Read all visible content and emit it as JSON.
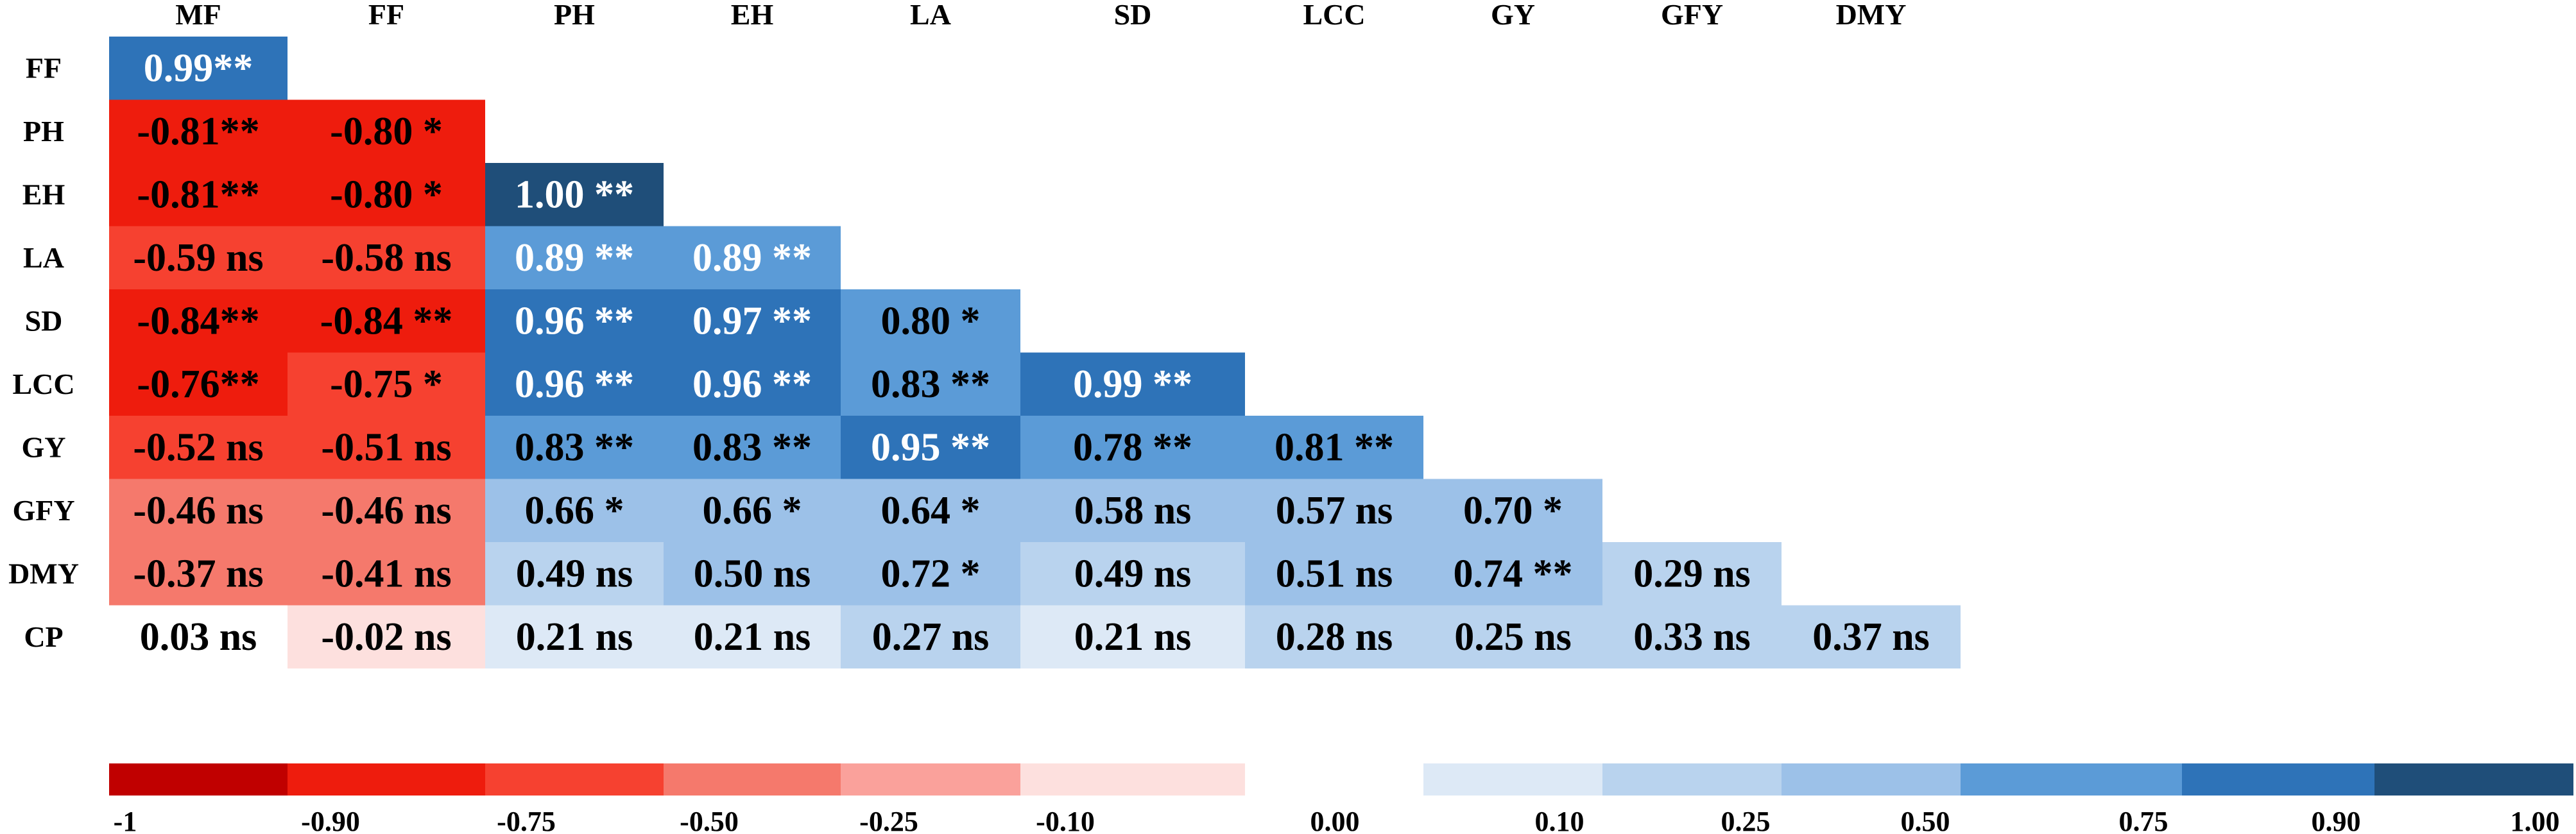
{
  "chart_data": {
    "type": "heatmap",
    "title": "",
    "subtitle": "",
    "column_labels": [
      "MF",
      "FF",
      "PH",
      "EH",
      "LA",
      "SD",
      "LCC",
      "GY",
      "GFY",
      "DMY"
    ],
    "row_labels": [
      "FF",
      "PH",
      "EH",
      "LA",
      "SD",
      "LCC",
      "GY",
      "GFY",
      "DMY",
      "CP"
    ],
    "matrix": "lower-triangular correlation matrix",
    "rows": [
      {
        "label": "FF",
        "cells": [
          {
            "value": 0.99,
            "text": "0.99**"
          }
        ]
      },
      {
        "label": "PH",
        "cells": [
          {
            "value": -0.81,
            "text": "-0.81**"
          },
          {
            "value": -0.8,
            "text": "-0.80 *"
          }
        ]
      },
      {
        "label": "EH",
        "cells": [
          {
            "value": -0.81,
            "text": "-0.81**"
          },
          {
            "value": -0.8,
            "text": "-0.80 *"
          },
          {
            "value": 1.0,
            "text": "1.00 **"
          }
        ]
      },
      {
        "label": "LA",
        "cells": [
          {
            "value": -0.59,
            "text": "-0.59 ns"
          },
          {
            "value": -0.58,
            "text": "-0.58 ns"
          },
          {
            "value": 0.89,
            "text": "0.89 **"
          },
          {
            "value": 0.89,
            "text": "0.89 **"
          }
        ]
      },
      {
        "label": "SD",
        "cells": [
          {
            "value": -0.84,
            "text": "-0.84**"
          },
          {
            "value": -0.84,
            "text": "-0.84 **"
          },
          {
            "value": 0.96,
            "text": "0.96 **"
          },
          {
            "value": 0.97,
            "text": "0.97 **"
          },
          {
            "value": 0.8,
            "text": "0.80 *"
          }
        ]
      },
      {
        "label": "LCC",
        "cells": [
          {
            "value": -0.76,
            "text": "-0.76**"
          },
          {
            "value": -0.75,
            "text": "-0.75 *"
          },
          {
            "value": 0.96,
            "text": "0.96 **"
          },
          {
            "value": 0.96,
            "text": "0.96 **"
          },
          {
            "value": 0.83,
            "text": "0.83 **"
          },
          {
            "value": 0.99,
            "text": "0.99 **"
          }
        ]
      },
      {
        "label": "GY",
        "cells": [
          {
            "value": -0.52,
            "text": "-0.52 ns"
          },
          {
            "value": -0.51,
            "text": "-0.51 ns"
          },
          {
            "value": 0.83,
            "text": "0.83 **"
          },
          {
            "value": 0.83,
            "text": "0.83 **"
          },
          {
            "value": 0.95,
            "text": "0.95 **"
          },
          {
            "value": 0.78,
            "text": "0.78 **"
          },
          {
            "value": 0.81,
            "text": "0.81 **"
          }
        ]
      },
      {
        "label": "GFY",
        "cells": [
          {
            "value": -0.46,
            "text": "-0.46 ns"
          },
          {
            "value": -0.46,
            "text": "-0.46 ns"
          },
          {
            "value": 0.66,
            "text": "0.66 *"
          },
          {
            "value": 0.66,
            "text": "0.66 *"
          },
          {
            "value": 0.64,
            "text": "0.64 *"
          },
          {
            "value": 0.58,
            "text": "0.58 ns"
          },
          {
            "value": 0.57,
            "text": "0.57 ns"
          },
          {
            "value": 0.7,
            "text": "0.70 *"
          }
        ]
      },
      {
        "label": "DMY",
        "cells": [
          {
            "value": -0.37,
            "text": "-0.37 ns"
          },
          {
            "value": -0.41,
            "text": "-0.41 ns"
          },
          {
            "value": 0.49,
            "text": "0.49 ns"
          },
          {
            "value": 0.5,
            "text": "0.50 ns"
          },
          {
            "value": 0.72,
            "text": "0.72 *"
          },
          {
            "value": 0.49,
            "text": "0.49 ns"
          },
          {
            "value": 0.51,
            "text": "0.51 ns"
          },
          {
            "value": 0.74,
            "text": "0.74 **"
          },
          {
            "value": 0.29,
            "text": "0.29 ns"
          }
        ]
      },
      {
        "label": "CP",
        "cells": [
          {
            "value": 0.03,
            "text": "0.03 ns"
          },
          {
            "value": -0.02,
            "text": "-0.02 ns"
          },
          {
            "value": 0.21,
            "text": "0.21 ns"
          },
          {
            "value": 0.21,
            "text": "0.21 ns"
          },
          {
            "value": 0.27,
            "text": "0.27 ns"
          },
          {
            "value": 0.21,
            "text": "0.21 ns"
          },
          {
            "value": 0.28,
            "text": "0.28 ns"
          },
          {
            "value": 0.25,
            "text": "0.25 ns"
          },
          {
            "value": 0.33,
            "text": "0.33 ns"
          },
          {
            "value": 0.37,
            "text": "0.37 ns"
          }
        ]
      }
    ],
    "color_scale": {
      "range": [
        -1,
        1
      ],
      "legend_position": "bottom",
      "bins": [
        {
          "from": -1.0,
          "to": -0.9,
          "color": "#c00000"
        },
        {
          "from": -0.9,
          "to": -0.75,
          "color": "#ee1c0d"
        },
        {
          "from": -0.75,
          "to": -0.5,
          "color": "#f64130"
        },
        {
          "from": -0.5,
          "to": -0.25,
          "color": "#f5796c"
        },
        {
          "from": -0.25,
          "to": -0.1,
          "color": "#faa19b"
        },
        {
          "from": -0.1,
          "to": 0.0,
          "color": "#fde0de"
        },
        {
          "from": 0.0,
          "to": 0.1,
          "color": "#ffffff"
        },
        {
          "from": 0.1,
          "to": 0.25,
          "color": "#dde9f6"
        },
        {
          "from": 0.25,
          "to": 0.5,
          "color": "#b9d3ee"
        },
        {
          "from": 0.5,
          "to": 0.75,
          "color": "#9cc1e8"
        },
        {
          "from": 0.75,
          "to": 0.9,
          "color": "#5b9bd7"
        },
        {
          "from": 0.9,
          "to": 1.0,
          "color": "#2e73b8"
        },
        {
          "from": 1.0,
          "to": 1.0,
          "color": "#1f4e79"
        }
      ],
      "tick_labels": [
        "-1",
        "-0.90",
        "-0.75",
        "-0.50",
        "-0.25",
        "-0.10",
        "0.00",
        "0.10",
        "0.25",
        "0.50",
        "0.75",
        "0.90",
        "1.00"
      ]
    },
    "colors": {
      "negative_strong": "#ee1c0d",
      "negative_mid": "#f64130",
      "negative_weak": "#f5796c",
      "positive_weak": "#b9d3ee",
      "positive_mid": "#9cc1e8",
      "positive_light": "#5b9bd7",
      "positive_strong": "#2e73b8",
      "positive_max": "#1f4e79",
      "text_dark": "#000000",
      "text_light": "#ffffff"
    }
  }
}
